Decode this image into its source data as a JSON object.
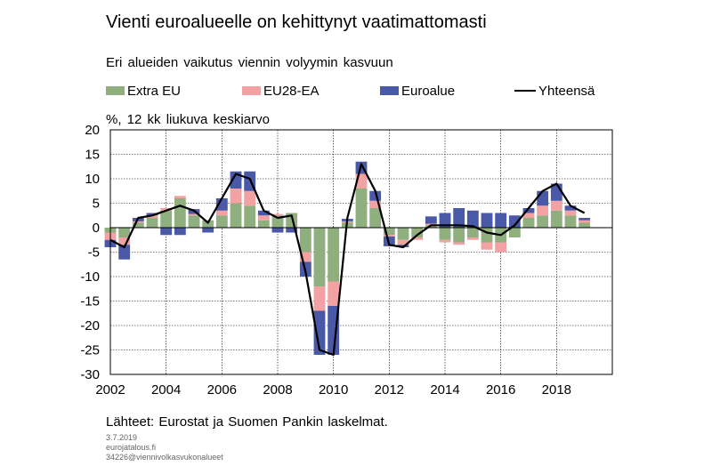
{
  "header": {
    "title": "Vienti euroalueelle on kehittynyt vaatimattomasti",
    "subtitle": "Eri alueiden vaikutus viennin volyymin kasvuun",
    "unit": "%, 12 kk liukuva keskiarvo"
  },
  "legend": [
    {
      "label": "Extra EU",
      "color": "#8FB07E",
      "kind": "bar"
    },
    {
      "label": "EU28-EA",
      "color": "#F2A2A2",
      "kind": "bar"
    },
    {
      "label": "Euroalue",
      "color": "#4A58A8",
      "kind": "bar"
    },
    {
      "label": "Yhteensä",
      "color": "#000000",
      "kind": "line"
    }
  ],
  "footer": {
    "source": "Lähteet: Eurostat ja Suomen Pankin laskelmat.",
    "date": "3.7.2019",
    "site": "eurojatalous.fi",
    "code": "34226@viennivolkasvukonalueet"
  },
  "chart_data": {
    "type": "bar",
    "stacked": true,
    "x_unit": "year",
    "ylim": [
      -30,
      20
    ],
    "yticks": [
      20,
      15,
      10,
      5,
      0,
      -5,
      -10,
      -15,
      -20,
      -25,
      -30
    ],
    "xlim": [
      2002,
      2020
    ],
    "xticks": [
      "2002",
      "2004",
      "2006",
      "2008",
      "2010",
      "2012",
      "2014",
      "2016",
      "2018"
    ],
    "grid": true,
    "x": [
      2002.0,
      2002.5,
      2003.0,
      2003.5,
      2004.0,
      2004.5,
      2005.0,
      2005.5,
      2006.0,
      2006.5,
      2007.0,
      2007.5,
      2008.0,
      2008.5,
      2009.0,
      2009.5,
      2010.0,
      2010.5,
      2011.0,
      2011.5,
      2012.0,
      2012.5,
      2013.0,
      2013.5,
      2014.0,
      2014.5,
      2015.0,
      2015.5,
      2016.0,
      2016.5,
      2017.0,
      2017.5,
      2018.0,
      2018.5,
      2019.0
    ],
    "series": [
      {
        "name": "Extra EU",
        "color": "#8FB07E",
        "values": [
          -1.0,
          -2.0,
          1.0,
          2.0,
          3.5,
          6.0,
          2.5,
          1.5,
          2.5,
          5.0,
          4.5,
          1.5,
          2.5,
          3.0,
          -5.0,
          -12.0,
          -11.0,
          1.0,
          8.0,
          4.0,
          -1.5,
          -2.5,
          -2.0,
          0.5,
          -2.5,
          -3.0,
          -2.0,
          -3.0,
          -3.0,
          -2.0,
          2.0,
          2.5,
          3.5,
          2.5,
          1.0
        ]
      },
      {
        "name": "EU28-EA",
        "color": "#F2A2A2",
        "values": [
          -1.5,
          -1.5,
          0.3,
          0.5,
          0.5,
          0.5,
          0.3,
          0.0,
          1.0,
          3.0,
          3.0,
          1.0,
          0.3,
          0.0,
          -2.0,
          -5.0,
          -5.0,
          0.3,
          3.0,
          1.5,
          -0.3,
          -1.0,
          -0.5,
          0.3,
          -0.5,
          -0.5,
          -0.5,
          -1.5,
          -2.0,
          0.0,
          1.0,
          2.0,
          2.0,
          1.0,
          0.5
        ]
      },
      {
        "name": "Euroalue",
        "color": "#4A58A8",
        "values": [
          -1.5,
          -3.0,
          0.7,
          0.5,
          -1.5,
          -1.5,
          1.0,
          -1.0,
          2.5,
          3.5,
          4.0,
          1.0,
          -1.0,
          -1.0,
          -3.0,
          -9.0,
          -10.0,
          0.5,
          2.5,
          2.0,
          -2.0,
          -0.5,
          0.0,
          1.5,
          3.0,
          4.0,
          3.5,
          3.0,
          3.0,
          2.5,
          1.0,
          3.0,
          3.5,
          1.0,
          0.5
        ]
      },
      {
        "name": "Yhteensä",
        "color": "#000000",
        "kind": "line",
        "values": [
          -2.5,
          -4.0,
          2.0,
          2.5,
          3.5,
          4.5,
          3.5,
          1.0,
          6.0,
          11.0,
          10.0,
          3.5,
          2.0,
          2.5,
          -9.0,
          -25.0,
          -26.0,
          2.0,
          13.0,
          7.5,
          -3.5,
          -4.0,
          -1.5,
          0.5,
          0.5,
          0.5,
          0.3,
          -1.0,
          -1.5,
          0.5,
          4.0,
          7.5,
          9.0,
          4.5,
          3.0
        ]
      }
    ]
  }
}
